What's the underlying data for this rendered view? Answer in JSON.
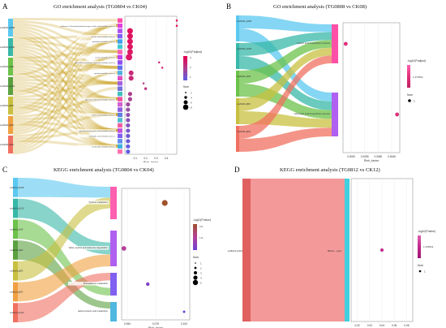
{
  "panels": [
    {
      "letter": "A",
      "title": "GO enrichment analysis (TG0804 vs CK04)",
      "genes": [
        "scaffold1.g1168",
        "scaffold1.g1136",
        "scaffold1.g339",
        "scaffold1.g1301",
        "scaffold1.g802",
        "scaffold1.g803",
        "scaffold1.g804"
      ],
      "terms": [
        "",
        "isoflavone 4'-phosphopantetheine-type nucleic acid metabolic process",
        "",
        "nucleic acid metabolic process",
        "pyrimidine metabolic process",
        "",
        "",
        "purine metabolic process",
        "pyrimidine-containing compound metabolic process",
        "",
        "tyrosine metabolic process",
        "",
        "",
        "",
        "",
        "glycosyl compound metabolic process",
        "",
        "",
        "amino acid metabolic process",
        "",
        "",
        "aspartate family amino acid metabolic process",
        "carboxylic acid metabolic process",
        "",
        "nucleoside metabolic process",
        ""
      ],
      "legend": {
        "color_title": "-log10(Padjust)",
        "color_ticks": [
          "3",
          "2",
          "1"
        ],
        "size_title": "Num",
        "size_values": [
          "2",
          "4",
          "6",
          "8"
        ]
      },
      "x_label": "Rich_factor",
      "x_ticks": [
        "0.1",
        "0.2",
        "0.3",
        "0.4"
      ]
    },
    {
      "letter": "B",
      "title": "GO enrichment analysis (TG0808 vs CK08)",
      "genes": [
        "scaffold1.g1168",
        "scaffold1.g1136",
        "scaffold1.g339",
        "scaffold1.g802",
        "scaffold1.g804"
      ],
      "terms": [
        "organic acid biosynthetic process",
        "carboxylic acid biosynthetic process"
      ],
      "legend": {
        "color_title": "-log10(Padjust)",
        "color_ticks": [
          "1.471562"
        ],
        "size_title": "Num",
        "size_values": [
          "5"
        ]
      },
      "x_label": "Rich_factor",
      "x_ticks": [
        "0.0050",
        "0.0055",
        "0.0060",
        "0.0065"
      ]
    },
    {
      "letter": "C",
      "title": "KEGG enrichment analysis (TG0804 vs CK04)",
      "genes": [
        "scaffold1.g1168",
        "scaffold1.g1136",
        "scaffold1.g339",
        "scaffold1.g802",
        "scaffold1.g803",
        "scaffold1.g804",
        "scaffold1.g1301"
      ],
      "terms": [
        "Tyrosine metabolism",
        "Valine, leucine and isoleucine degradation",
        "Phenylalanine metabolism",
        "alpha-Linolenic acid metabolism"
      ],
      "legend": {
        "color_title": "-log10(Pvalue)",
        "color_ticks": [
          "2.0",
          "1.5"
        ],
        "size_title": "Num",
        "size_values": [
          "1",
          "2",
          "3",
          "4",
          "5"
        ]
      },
      "x_label": "Rich_factor",
      "x_ticks": [
        "0.050",
        "0.075",
        "0.100"
      ]
    },
    {
      "letter": "D",
      "title": "KEGG enrichment analysis (TG0812 vs CK12)",
      "genes": [
        "scaffold1.g1301"
      ],
      "terms": [
        "Mitosis – yeast"
      ],
      "legend": {
        "color_title": "-log10(Pvalue)",
        "color_ticks": [
          "1.345441"
        ],
        "size_title": "Num",
        "size_values": [
          "1"
        ]
      },
      "x_label": "Rich_factor",
      "x_ticks": [
        "0.02",
        "0.03",
        "0.04",
        "0.05",
        "0.06"
      ]
    }
  ],
  "chart_data": [
    {
      "type": "scatter",
      "panel": "A",
      "title": "GO enrichment analysis (TG0804 vs CK04)",
      "xlabel": "Rich_factor",
      "xlim": [
        0,
        0.5
      ],
      "color_scale": "-log10(Padjust)",
      "points": [
        {
          "x": 0.5,
          "y": 25,
          "num": 1,
          "color": "#e8004a"
        },
        {
          "x": 0.5,
          "y": 24,
          "num": 1,
          "color": "#e8004a"
        },
        {
          "x": 0.05,
          "y": 23,
          "num": 6,
          "color": "#e01060"
        },
        {
          "x": 0.05,
          "y": 22,
          "num": 6,
          "color": "#e01060"
        },
        {
          "x": 0.05,
          "y": 21,
          "num": 6,
          "color": "#e01462"
        },
        {
          "x": 0.05,
          "y": 20,
          "num": 6,
          "color": "#e01462"
        },
        {
          "x": 0.05,
          "y": 19,
          "num": 6,
          "color": "#dd1866"
        },
        {
          "x": 0.04,
          "y": 18,
          "num": 7,
          "color": "#dd1866"
        },
        {
          "x": 0.33,
          "y": 17,
          "num": 1,
          "color": "#d0206e"
        },
        {
          "x": 0.36,
          "y": 16,
          "num": 1,
          "color": "#d0206e"
        },
        {
          "x": 0.06,
          "y": 15,
          "num": 5,
          "color": "#c72a78"
        },
        {
          "x": 0.06,
          "y": 14,
          "num": 5,
          "color": "#c72a78"
        },
        {
          "x": 0.18,
          "y": 13,
          "num": 1,
          "color": "#bc3480"
        },
        {
          "x": 0.2,
          "y": 12,
          "num": 2,
          "color": "#bc3480"
        },
        {
          "x": 0.05,
          "y": 11,
          "num": 4,
          "color": "#b03c8c"
        },
        {
          "x": 0.05,
          "y": 10,
          "num": 4,
          "color": "#a84294"
        },
        {
          "x": 0.03,
          "y": 9,
          "num": 4,
          "color": "#a04a9c"
        },
        {
          "x": 0.03,
          "y": 8,
          "num": 4,
          "color": "#9850a4"
        },
        {
          "x": 0.03,
          "y": 7,
          "num": 4,
          "color": "#9050b0"
        },
        {
          "x": 0.03,
          "y": 6,
          "num": 4,
          "color": "#8a52b8"
        },
        {
          "x": 0.03,
          "y": 5,
          "num": 4,
          "color": "#8054c0"
        },
        {
          "x": 0.03,
          "y": 4,
          "num": 4,
          "color": "#7a56c8"
        },
        {
          "x": 0.03,
          "y": 3,
          "num": 4,
          "color": "#7058d0"
        },
        {
          "x": 0.03,
          "y": 2,
          "num": 4,
          "color": "#6a5ad6"
        },
        {
          "x": 0.03,
          "y": 1,
          "num": 4,
          "color": "#645ce0"
        },
        {
          "x": 0.03,
          "y": 0,
          "num": 4,
          "color": "#5c5ee6"
        }
      ]
    },
    {
      "type": "scatter",
      "panel": "B",
      "title": "GO enrichment analysis (TG0808 vs CK08)",
      "xlabel": "Rich_factor",
      "xlim": [
        0.0047,
        0.0068
      ],
      "points": [
        {
          "category": "organic acid biosynthetic process",
          "x": 0.0048,
          "num": 5,
          "color": "#e0307a"
        },
        {
          "category": "carboxylic acid biosynthetic process",
          "x": 0.0067,
          "num": 5,
          "color": "#e0307a"
        }
      ]
    },
    {
      "type": "scatter",
      "panel": "C",
      "title": "KEGG enrichment analysis (TG0804 vs CK04)",
      "xlabel": "Rich_factor",
      "xlim": [
        0.045,
        0.105
      ],
      "points": [
        {
          "category": "Tyrosine metabolism",
          "x": 0.083,
          "num": 4,
          "color": "#a0522d"
        },
        {
          "category": "Valine, leucine and isoleucine degradation",
          "x": 0.047,
          "num": 3,
          "color": "#b44098"
        },
        {
          "category": "Phenylalanine metabolism",
          "x": 0.068,
          "num": 2,
          "color": "#8040c8"
        },
        {
          "category": "alpha-Linolenic acid metabolism",
          "x": 0.1,
          "num": 1,
          "color": "#7040d8"
        }
      ]
    },
    {
      "type": "scatter",
      "panel": "D",
      "title": "KEGG enrichment analysis (TG0812 vs CK12)",
      "xlabel": "Rich_factor",
      "xlim": [
        0.015,
        0.065
      ],
      "points": [
        {
          "category": "Mitosis – yeast",
          "x": 0.04,
          "num": 1,
          "color": "#c0288a"
        }
      ]
    }
  ]
}
